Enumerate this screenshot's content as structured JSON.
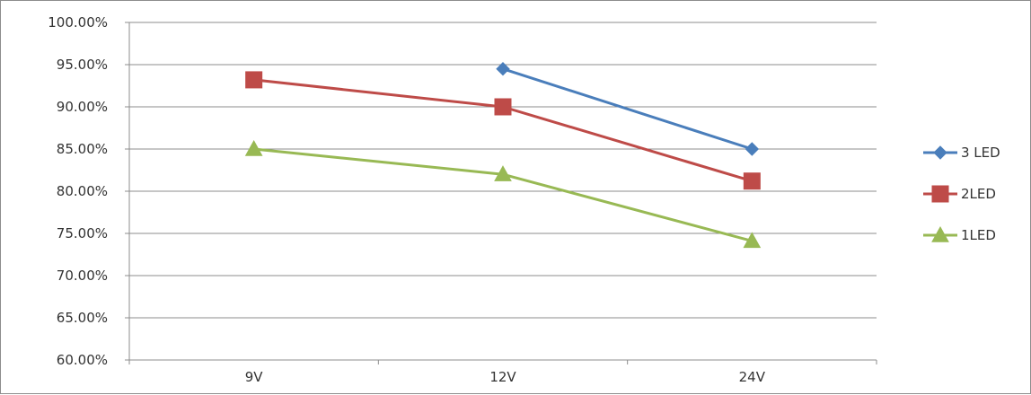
{
  "chart_data": {
    "type": "line",
    "categories": [
      "9V",
      "12V",
      "24V"
    ],
    "y_ticks": [
      "100.00%",
      "95.00%",
      "90.00%",
      "85.00%",
      "80.00%",
      "75.00%",
      "70.00%",
      "65.00%",
      "60.00%"
    ],
    "ylim": [
      0.6,
      1.0
    ],
    "grid": true,
    "legend_position": "right",
    "series": [
      {
        "name": "3 LED",
        "values": [
          null,
          0.945,
          0.85
        ],
        "color": "#4a7ebb",
        "marker": "diamond"
      },
      {
        "name": "2LED",
        "values": [
          0.932,
          0.9,
          0.812
        ],
        "color": "#be4b48",
        "marker": "square"
      },
      {
        "name": "1LED",
        "values": [
          0.85,
          0.82,
          0.741
        ],
        "color": "#98b954",
        "marker": "triangle"
      }
    ]
  }
}
